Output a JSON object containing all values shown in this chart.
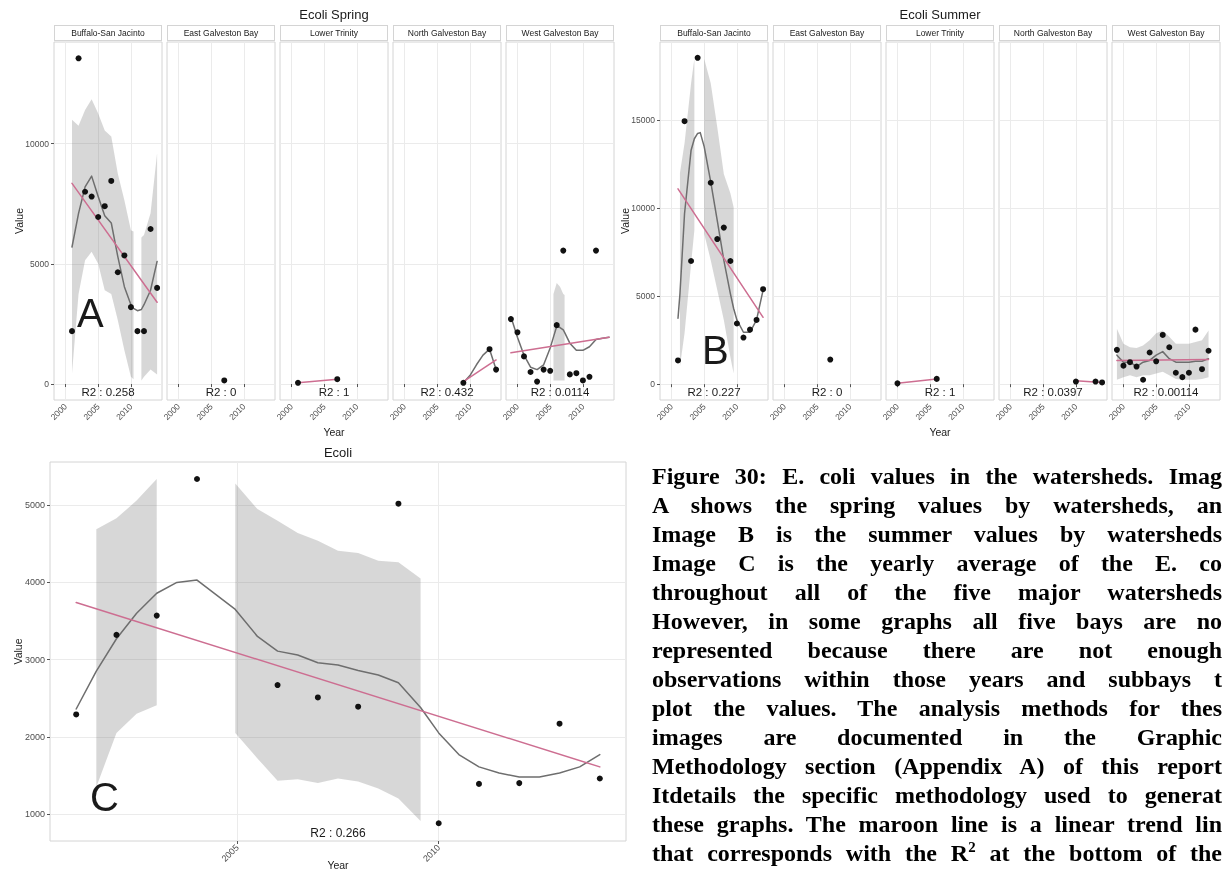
{
  "chart_data": [
    {
      "type": "scatter",
      "subtitle": "Buffalo-San Jacinto",
      "ylabel": "Value",
      "xlim": [
        1998.25,
        2014.75
      ],
      "xticks": [
        2000,
        2005,
        2010
      ],
      "ylim": [
        -665,
        14230
      ],
      "yticks": [
        0,
        5000,
        10000
      ],
      "grid": true,
      "annotations": [
        "R2 : 0.258",
        "A"
      ],
      "series": [
        {
          "type": "scatter",
          "marker": "circle",
          "color": "#111111",
          "x": [
            2001,
            2002,
            2003,
            2004,
            2005,
            2006,
            2007,
            2008,
            2009,
            2010,
            2011,
            2012,
            2013,
            2014
          ],
          "values": [
            2200,
            13550,
            8000,
            7800,
            6950,
            7400,
            8450,
            4650,
            5350,
            3200,
            2200,
            2200,
            6450,
            4000
          ]
        },
        {
          "type": "line",
          "color": "#6e6e6e",
          "x": [
            2001,
            2002,
            2003,
            2004,
            2005,
            2006,
            2007,
            2008,
            2009,
            2010,
            2010.4,
            2011,
            2011.6,
            2012,
            2013,
            2014
          ],
          "values": [
            5700,
            7100,
            8200,
            8650,
            7800,
            7000,
            6700,
            5300,
            4050,
            3300,
            3150,
            3050,
            3100,
            3300,
            3900,
            5100
          ],
          "lower": [
            450,
            3750,
            5150,
            5500,
            5000,
            3900,
            3750,
            2650,
            1400,
            300,
            200,
            null,
            150,
            300,
            600,
            400
          ],
          "upper": [
            11000,
            10750,
            11400,
            11850,
            11250,
            10550,
            10300,
            8750,
            7650,
            6400,
            6350,
            null,
            6100,
            6200,
            7100,
            9600
          ]
        },
        {
          "type": "line",
          "color": "#cd6e91",
          "x": [
            2001,
            2014
          ],
          "values": [
            8350,
            3400
          ]
        }
      ]
    },
    {
      "type": "scatter",
      "subtitle": "East Galveston Bay",
      "xlim": [
        1998.25,
        2014.75
      ],
      "xticks": [
        2000,
        2005,
        2010
      ],
      "ylim": [
        -665,
        14230
      ],
      "yticks": [
        0,
        5000,
        10000
      ],
      "tick_labels": "x",
      "grid": true,
      "annotations": [
        "R2 : 0"
      ],
      "series": [
        {
          "type": "scatter",
          "marker": "circle",
          "color": "#111111",
          "x": [
            2007
          ],
          "values": [
            150
          ]
        }
      ]
    },
    {
      "type": "scatter",
      "title": "Ecoli Spring",
      "subtitle": "Lower Trinity",
      "xlabel": "Year",
      "xlim": [
        1998.25,
        2014.75
      ],
      "xticks": [
        2000,
        2005,
        2010
      ],
      "ylim": [
        -665,
        14230
      ],
      "yticks": [
        0,
        5000,
        10000
      ],
      "tick_labels": "x",
      "grid": true,
      "annotations": [
        "R2 : 1"
      ],
      "series": [
        {
          "type": "scatter",
          "marker": "circle",
          "color": "#111111",
          "x": [
            2001,
            2007
          ],
          "values": [
            50,
            200
          ]
        },
        {
          "type": "line",
          "color": "#cd6e91",
          "x": [
            2001,
            2007
          ],
          "values": [
            50,
            200
          ]
        }
      ]
    },
    {
      "type": "scatter",
      "subtitle": "North Galveston Bay",
      "xlim": [
        1998.25,
        2014.75
      ],
      "xticks": [
        2000,
        2005,
        2010
      ],
      "ylim": [
        -665,
        14230
      ],
      "yticks": [
        0,
        5000,
        10000
      ],
      "tick_labels": "x",
      "grid": true,
      "annotations": [
        "R2 : 0.432"
      ],
      "series": [
        {
          "type": "scatter",
          "marker": "circle",
          "color": "#111111",
          "x": [
            2009,
            2013,
            2014
          ],
          "values": [
            50,
            1450,
            600
          ]
        },
        {
          "type": "line",
          "color": "#6e6e6e",
          "x": [
            2009,
            2010,
            2011,
            2012,
            2013,
            2014
          ],
          "values": [
            50,
            350,
            800,
            1200,
            1450,
            600
          ]
        },
        {
          "type": "line",
          "color": "#cd6e91",
          "x": [
            2009,
            2014
          ],
          "values": [
            100,
            1000
          ]
        }
      ]
    },
    {
      "type": "scatter",
      "subtitle": "West Galveston Bay",
      "xlim": [
        1998.25,
        2014.75
      ],
      "xticks": [
        2000,
        2005,
        2010
      ],
      "ylim": [
        -665,
        14230
      ],
      "yticks": [
        0,
        5000,
        10000
      ],
      "tick_labels": "x",
      "grid": true,
      "annotations": [
        "R2 : 0.0114"
      ],
      "series": [
        {
          "type": "scatter",
          "marker": "circle",
          "color": "#111111",
          "x": [
            1999,
            2000,
            2001,
            2002,
            2003,
            2004,
            2005,
            2006,
            2007,
            2008,
            2009,
            2010,
            2011,
            2012
          ],
          "values": [
            2700,
            2150,
            1150,
            500,
            100,
            600,
            550,
            2450,
            5550,
            400,
            450,
            150,
            300,
            5550
          ]
        },
        {
          "type": "line",
          "color": "#6e6e6e",
          "x": [
            1999,
            2000,
            2001,
            2002,
            2003,
            2004,
            2005,
            2005.5,
            2006,
            2006.5,
            2007,
            2007.2,
            2008,
            2009,
            2010,
            2011,
            2012,
            2013,
            2014
          ],
          "values": [
            2800,
            1950,
            1200,
            700,
            600,
            800,
            1500,
            1950,
            2400,
            2350,
            2250,
            2150,
            1700,
            1400,
            1400,
            1550,
            1850,
            1900,
            1950
          ],
          "lower": [
            null,
            null,
            null,
            null,
            null,
            null,
            null,
            150,
            150,
            150,
            150,
            150,
            null,
            null,
            null,
            null,
            null,
            null,
            null
          ],
          "upper": [
            null,
            null,
            null,
            null,
            null,
            null,
            null,
            3750,
            4200,
            4050,
            3750,
            3700,
            null,
            null,
            null,
            null,
            null,
            null,
            null
          ]
        },
        {
          "type": "line",
          "color": "#cd6e91",
          "x": [
            1999,
            2014
          ],
          "values": [
            1300,
            1950
          ]
        }
      ]
    },
    {
      "type": "scatter",
      "subtitle": "Buffalo-San Jacinto",
      "ylabel": "Value",
      "xlim": [
        1998.25,
        2014.75
      ],
      "xticks": [
        2000,
        2005,
        2010
      ],
      "ylim": [
        -900,
        19450
      ],
      "yticks": [
        0,
        5000,
        10000,
        15000
      ],
      "grid": true,
      "annotations": [
        "R2 : 0.227",
        "B"
      ],
      "series": [
        {
          "type": "scatter",
          "marker": "circle",
          "color": "#111111",
          "x": [
            2001,
            2002,
            2003,
            2004,
            2006,
            2007,
            2008,
            2009,
            2010,
            2011,
            2012,
            2013,
            2014
          ],
          "values": [
            1350,
            14950,
            7000,
            18550,
            11450,
            8250,
            8900,
            7000,
            3450,
            2650,
            3100,
            3650,
            5400
          ]
        },
        {
          "type": "line",
          "color": "#6e6e6e",
          "x": [
            2001,
            2001.3,
            2002,
            2003,
            2003.5,
            2004,
            2004.4,
            2005,
            2006,
            2007,
            2008,
            2009,
            2009.5,
            2010,
            2011,
            2012,
            2013,
            2014
          ],
          "values": [
            3750,
            5150,
            9700,
            13300,
            13950,
            14250,
            14300,
            13500,
            11500,
            9300,
            7050,
            5150,
            4300,
            3650,
            2950,
            2950,
            3650,
            5350
          ],
          "lower": [
            null,
            1000,
            2900,
            6850,
            8750,
            null,
            null,
            8550,
            7050,
            5350,
            3650,
            1550,
            600,
            null,
            null,
            null,
            null,
            null
          ],
          "upper": [
            null,
            12000,
            13700,
            17100,
            18500,
            null,
            null,
            18500,
            17100,
            14600,
            11950,
            10850,
            10050,
            null,
            null,
            null,
            null,
            null
          ]
        },
        {
          "type": "line",
          "color": "#cd6e91",
          "x": [
            2001,
            2014
          ],
          "values": [
            11100,
            3800
          ]
        }
      ]
    },
    {
      "type": "scatter",
      "subtitle": "East Galveston Bay",
      "xlim": [
        1998.25,
        2014.75
      ],
      "xticks": [
        2000,
        2005,
        2010
      ],
      "ylim": [
        -900,
        19450
      ],
      "yticks": [
        0,
        5000,
        10000,
        15000
      ],
      "tick_labels": "x",
      "grid": true,
      "annotations": [
        "R2 : 0"
      ],
      "series": [
        {
          "type": "scatter",
          "marker": "circle",
          "color": "#111111",
          "x": [
            2007
          ],
          "values": [
            1400
          ]
        }
      ]
    },
    {
      "type": "scatter",
      "title": "Ecoli Summer",
      "subtitle": "Lower Trinity",
      "xlabel": "Year",
      "xlim": [
        1998.25,
        2014.75
      ],
      "xticks": [
        2000,
        2005,
        2010
      ],
      "ylim": [
        -900,
        19450
      ],
      "yticks": [
        0,
        5000,
        10000,
        15000
      ],
      "tick_labels": "x",
      "grid": true,
      "annotations": [
        "R2 : 1"
      ],
      "series": [
        {
          "type": "scatter",
          "marker": "circle",
          "color": "#111111",
          "x": [
            2000,
            2006
          ],
          "values": [
            50,
            300
          ]
        },
        {
          "type": "line",
          "color": "#cd6e91",
          "x": [
            2000,
            2006
          ],
          "values": [
            50,
            300
          ]
        }
      ]
    },
    {
      "type": "scatter",
      "subtitle": "North Galveston Bay",
      "xlim": [
        1998.25,
        2014.75
      ],
      "xticks": [
        2000,
        2005,
        2010
      ],
      "ylim": [
        -900,
        19450
      ],
      "yticks": [
        0,
        5000,
        10000,
        15000
      ],
      "tick_labels": "x",
      "grid": true,
      "annotations": [
        "R2 : 0.0397"
      ],
      "series": [
        {
          "type": "scatter",
          "marker": "circle",
          "color": "#111111",
          "x": [
            2010,
            2013,
            2014
          ],
          "values": [
            150,
            150,
            100
          ]
        },
        {
          "type": "line",
          "color": "#cd6e91",
          "x": [
            2010,
            2014
          ],
          "values": [
            200,
            100
          ]
        }
      ]
    },
    {
      "type": "scatter",
      "subtitle": "West Galveston Bay",
      "xlim": [
        1998.25,
        2014.75
      ],
      "xticks": [
        2000,
        2005,
        2010
      ],
      "ylim": [
        -900,
        19450
      ],
      "yticks": [
        0,
        5000,
        10000,
        15000
      ],
      "tick_labels": "x",
      "grid": true,
      "annotations": [
        "R2 : 0.00114"
      ],
      "series": [
        {
          "type": "scatter",
          "marker": "circle",
          "color": "#111111",
          "x": [
            1999,
            2000,
            2001,
            2002,
            2003,
            2004,
            2005,
            2006,
            2007,
            2008,
            2009,
            2010,
            2011,
            2012,
            2013
          ],
          "values": [
            1950,
            1050,
            1250,
            1000,
            250,
            1800,
            1300,
            2800,
            2100,
            650,
            400,
            650,
            3100,
            850,
            1900
          ]
        },
        {
          "type": "line",
          "color": "#6e6e6e",
          "x": [
            1999,
            2000,
            2001,
            2002,
            2003,
            2004,
            2005,
            2006,
            2007,
            2008,
            2009,
            2010,
            2011,
            2012,
            2013
          ],
          "values": [
            1650,
            1250,
            1250,
            1000,
            1250,
            1350,
            1650,
            1850,
            1450,
            1250,
            1250,
            1250,
            1300,
            1300,
            1450
          ],
          "lower": [
            250,
            400,
            500,
            400,
            500,
            500,
            600,
            700,
            500,
            300,
            250,
            250,
            250,
            300,
            400
          ],
          "upper": [
            3150,
            2300,
            2100,
            2050,
            2200,
            2500,
            2900,
            3050,
            2700,
            2300,
            2300,
            2300,
            2400,
            2500,
            3050
          ]
        },
        {
          "type": "line",
          "color": "#cd6e91",
          "x": [
            1999,
            2013
          ],
          "values": [
            1350,
            1400
          ]
        }
      ]
    },
    {
      "type": "scatter",
      "title": "Ecoli",
      "xlabel": "Year",
      "ylabel": "Value",
      "xlim": [
        2000.35,
        2014.65
      ],
      "xticks": [
        2005,
        2010
      ],
      "ylim": [
        650,
        5560
      ],
      "yticks": [
        1000,
        2000,
        3000,
        4000,
        5000
      ],
      "grid": true,
      "annotations": [
        "R2 : 0.266",
        "C"
      ],
      "series": [
        {
          "type": "scatter",
          "marker": "circle",
          "color": "#111111",
          "x": [
            2001,
            2002,
            2003,
            2004,
            2006,
            2007,
            2008,
            2009,
            2010,
            2011,
            2012,
            2013,
            2014
          ],
          "values": [
            2290,
            3320,
            3570,
            5340,
            2670,
            2510,
            2390,
            5020,
            880,
            1390,
            1400,
            2170,
            1460
          ]
        },
        {
          "type": "line",
          "color": "#6e6e6e",
          "x": [
            2001,
            2001.5,
            2002,
            2002.5,
            2003,
            2003.5,
            2004,
            2004.95,
            2005.5,
            2006,
            2006.5,
            2007,
            2007.5,
            2008,
            2008.5,
            2009,
            2009.55,
            2010,
            2010.5,
            2011,
            2011.5,
            2012,
            2012.5,
            2013,
            2013.5,
            2014
          ],
          "values": [
            2360,
            2850,
            3270,
            3600,
            3860,
            4000,
            4030,
            3650,
            3300,
            3110,
            3060,
            2960,
            2930,
            2860,
            2800,
            2700,
            2380,
            2050,
            1770,
            1610,
            1530,
            1480,
            1480,
            1530,
            1610,
            1770
          ],
          "lower": [
            null,
            1350,
            2050,
            2300,
            2410,
            null,
            null,
            2050,
            1720,
            1430,
            1450,
            1400,
            1460,
            1420,
            1330,
            1200,
            910,
            null,
            null,
            null,
            null,
            null,
            null,
            null,
            null,
            null
          ],
          "upper": [
            null,
            4690,
            4830,
            5060,
            5340,
            null,
            null,
            5280,
            4950,
            4800,
            4640,
            4540,
            4410,
            4380,
            4280,
            4260,
            4050,
            null,
            null,
            null,
            null,
            null,
            null,
            null,
            null,
            null
          ]
        },
        {
          "type": "line",
          "color": "#cd6e91",
          "x": [
            2001,
            2014
          ],
          "values": [
            3740,
            1610
          ]
        }
      ]
    },
    {
      "type": "other",
      "annotations": [
        "Figure 30: E. coli values in the watersheds. Imag",
        "A shows the spring values by watersheds, an",
        "Image B is the summer values by watersheds",
        "Image C is the yearly average of the E. co",
        "throughout all of the five major watersheds",
        "However, in some graphs all five bays are no",
        "represented because there are not enough",
        "observations within those years and subbays t",
        "plot the values. The analysis methods for thes",
        "images are documented in the Graphic",
        "Methodology section (Appendix A) of this report",
        "Itdetails the specific methodology used to generat",
        "these graphs. The maroon line is a linear trend lin",
        "that corresponds with the R$^{2}$ at the bottom of the"
      ]
    }
  ]
}
